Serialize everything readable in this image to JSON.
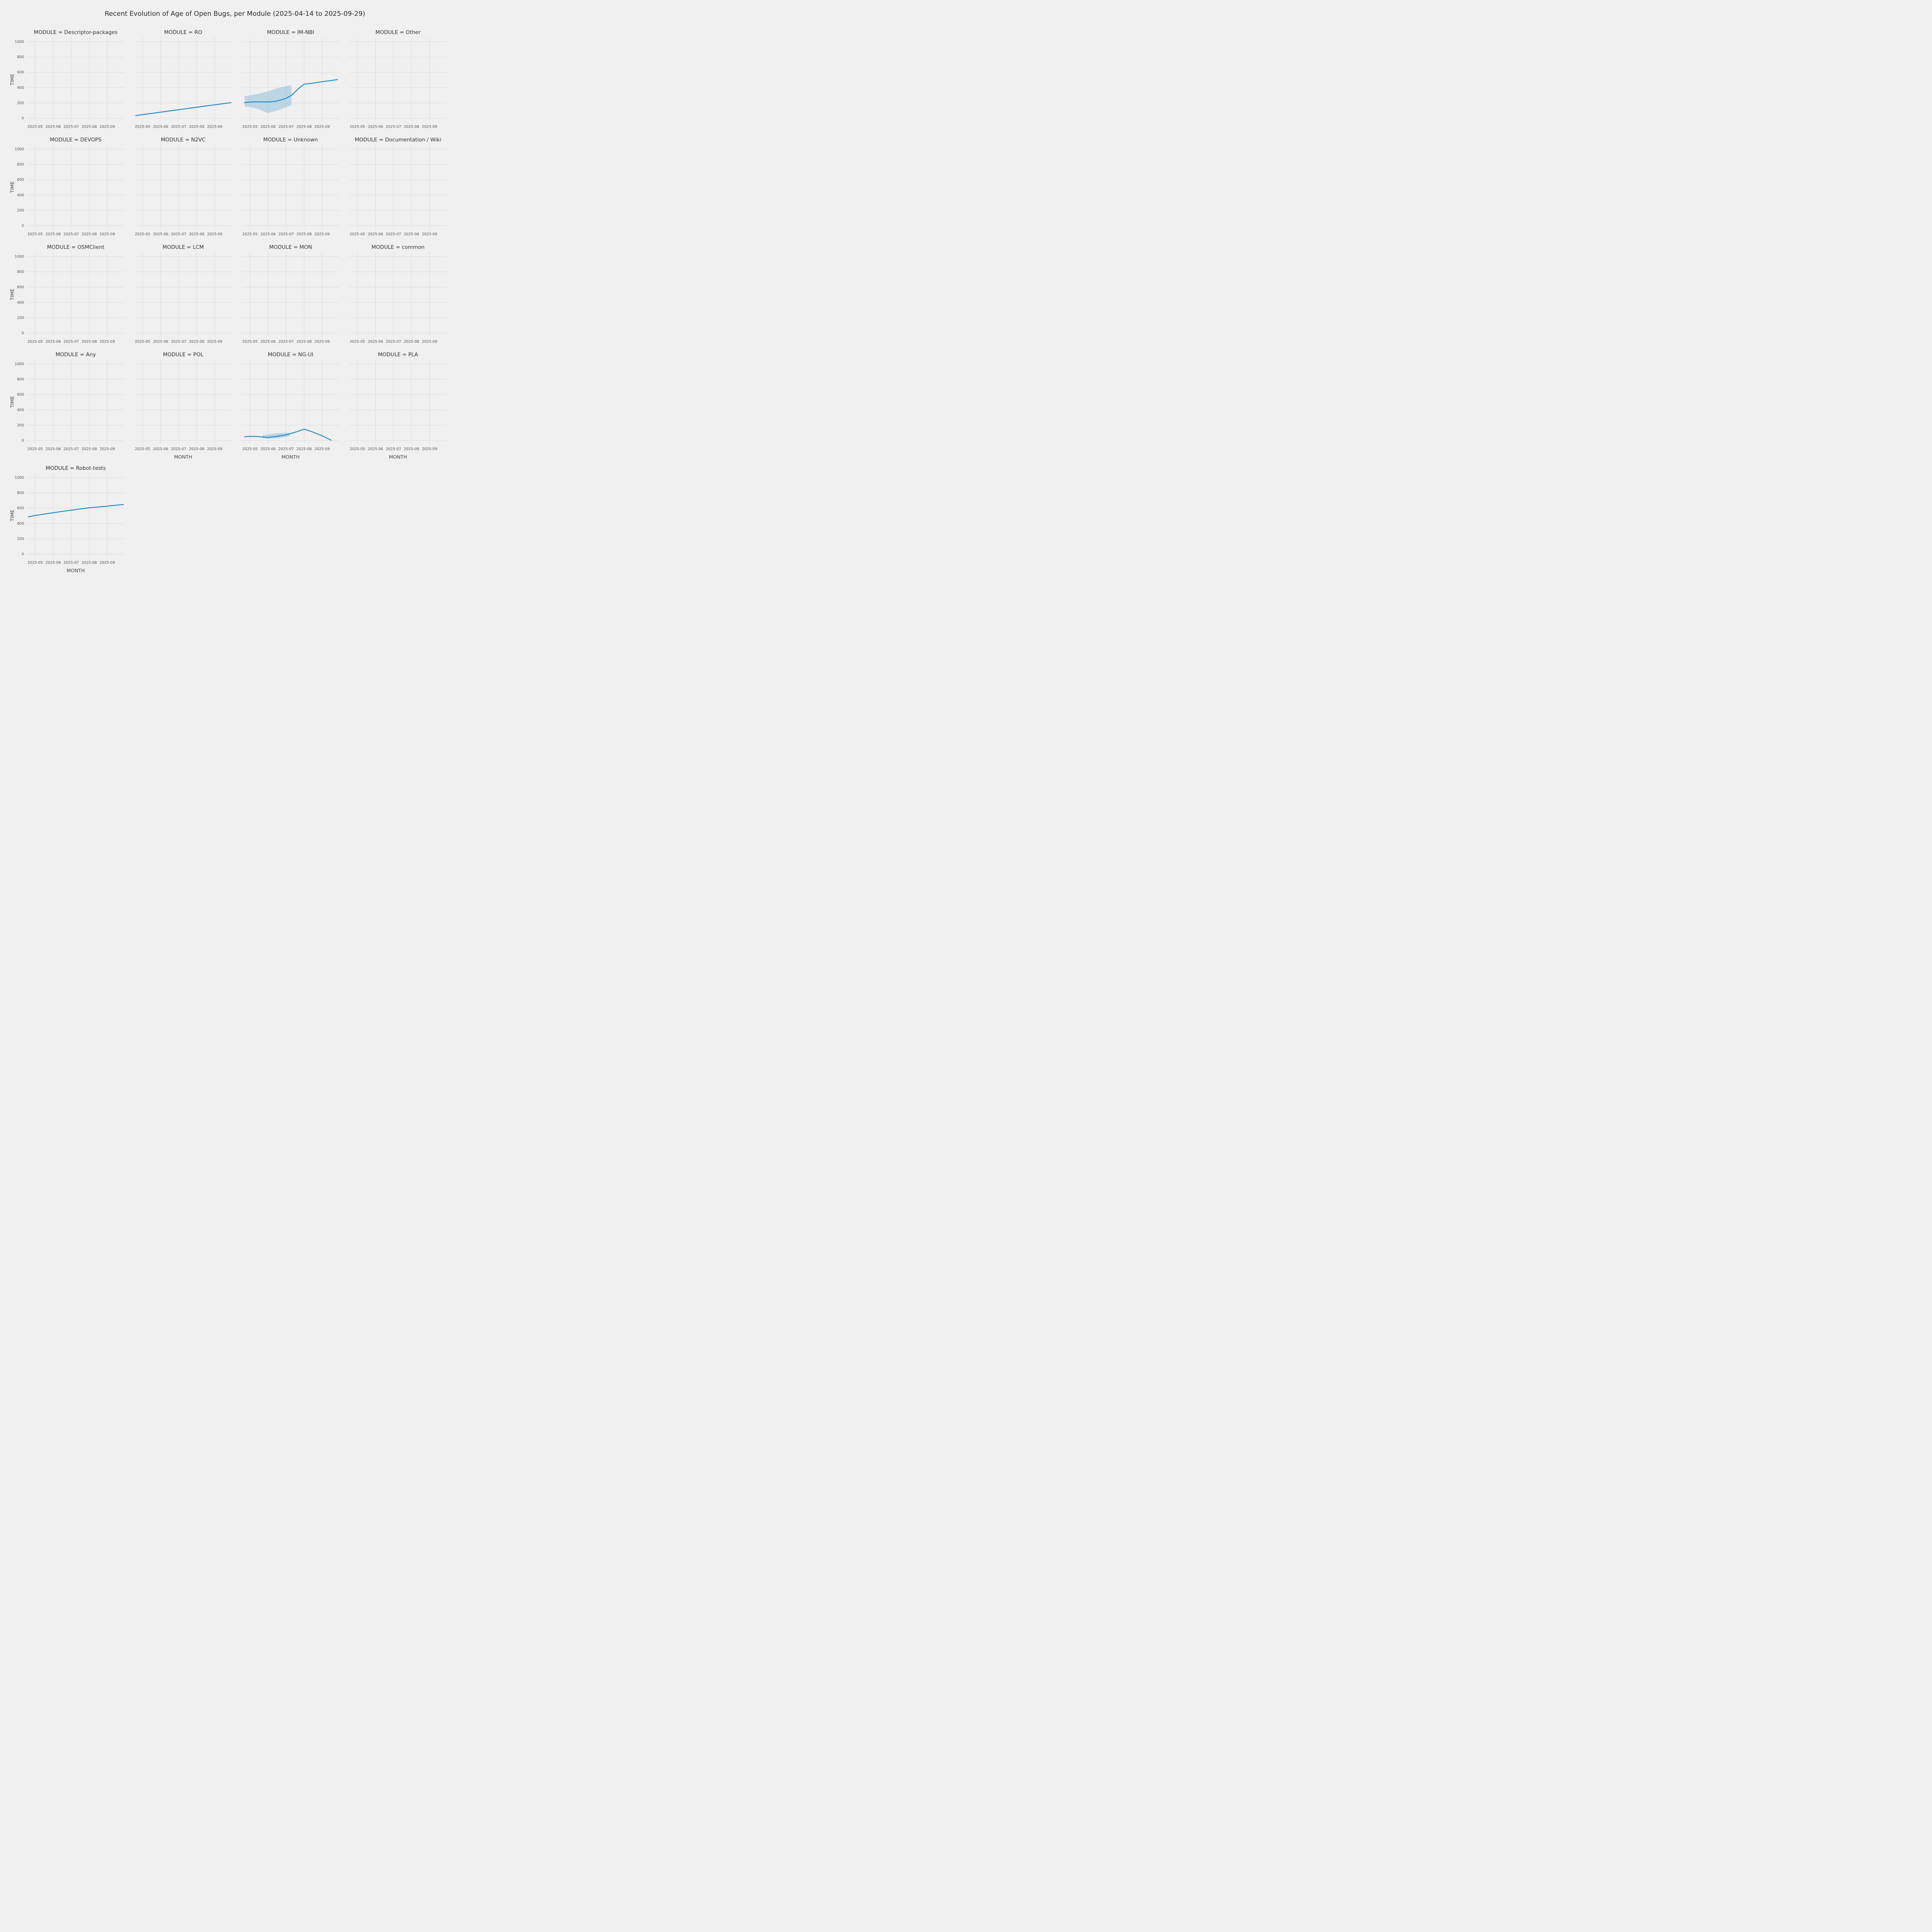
{
  "chart_data": {
    "type": "line",
    "title": "Recent Evolution of Age of Open Bugs, per Module (2025-04-14 to 2025-09-29)",
    "xlabel": "MONTH",
    "ylabel": "TIME",
    "legend_position": "none",
    "grid": true,
    "background_color": "#f0f0f0",
    "grid_color": "#dcdcdc",
    "line_color": "#2087c2",
    "band_opacity": 0.25,
    "x_domain": [
      0.55,
      5.95
    ],
    "y_domain": [
      -50,
      1060
    ],
    "x_ticks": {
      "positions": [
        1,
        2,
        3,
        4,
        5
      ],
      "labels": [
        "2025-05",
        "2025-06",
        "2025-07",
        "2025-08",
        "2025-09"
      ]
    },
    "y_ticks": [
      0,
      200,
      400,
      600,
      800,
      1000
    ],
    "x_unit_note": "x values are months, 1 = 2025-05 ... 5 = 2025-09",
    "facets": [
      {
        "label": "MODULE = Descriptor-packages",
        "module": "Descriptor-packages",
        "series": null,
        "band": null,
        "show_xlabel": false
      },
      {
        "label": "MODULE = RO",
        "module": "RO",
        "series": {
          "x": [
            0.62,
            1,
            1.5,
            2,
            2.5,
            3,
            3.5,
            4,
            4.5,
            5,
            5.5,
            5.9
          ],
          "y": [
            35,
            48,
            63,
            80,
            96,
            112,
            128,
            144,
            160,
            176,
            191,
            205
          ]
        },
        "band": null,
        "show_xlabel": false
      },
      {
        "label": "MODULE = IM-NBI",
        "module": "IM-NBI",
        "series": {
          "x": [
            0.7,
            1,
            1.5,
            2,
            2.4,
            2.8,
            3,
            3.3,
            3.7,
            4,
            4.5,
            5,
            5.5,
            5.85
          ],
          "y": [
            205,
            212,
            216,
            213,
            220,
            245,
            260,
            300,
            390,
            445,
            458,
            478,
            493,
            505
          ]
        },
        "band": {
          "x": [
            0.7,
            1,
            1.5,
            2,
            2.5,
            3,
            3.3
          ],
          "lo": [
            150,
            147,
            115,
            68,
            100,
            145,
            170
          ],
          "hi": [
            288,
            300,
            322,
            352,
            392,
            420,
            432
          ]
        },
        "show_xlabel": false
      },
      {
        "label": "MODULE = Other",
        "module": "Other",
        "series": null,
        "band": null,
        "show_xlabel": false
      },
      {
        "label": "MODULE = DEVOPS",
        "module": "DEVOPS",
        "series": null,
        "band": null,
        "show_xlabel": false
      },
      {
        "label": "MODULE = N2VC",
        "module": "N2VC",
        "series": null,
        "band": null,
        "show_xlabel": false
      },
      {
        "label": "MODULE = Unknown",
        "module": "Unknown",
        "series": null,
        "band": null,
        "show_xlabel": false
      },
      {
        "label": "MODULE = Documentation / Wiki",
        "module": "Documentation / Wiki",
        "series": null,
        "band": null,
        "show_xlabel": false
      },
      {
        "label": "MODULE = OSMClient",
        "module": "OSMClient",
        "series": null,
        "band": null,
        "show_xlabel": false
      },
      {
        "label": "MODULE = LCM",
        "module": "LCM",
        "series": null,
        "band": null,
        "show_xlabel": false
      },
      {
        "label": "MODULE = MON",
        "module": "MON",
        "series": null,
        "band": null,
        "show_xlabel": false
      },
      {
        "label": "MODULE = common",
        "module": "common",
        "series": null,
        "band": null,
        "show_xlabel": false
      },
      {
        "label": "MODULE = Any",
        "module": "Any",
        "series": null,
        "band": null,
        "show_xlabel": false
      },
      {
        "label": "MODULE = POL",
        "module": "POL",
        "series": null,
        "band": null,
        "show_xlabel": true
      },
      {
        "label": "MODULE = NG-UI",
        "module": "NG-UI",
        "series": {
          "x": [
            0.7,
            1,
            1.4,
            2,
            2.5,
            3,
            3.5,
            4,
            4.4,
            5,
            5.5
          ],
          "y": [
            48,
            55,
            52,
            40,
            55,
            75,
            108,
            148,
            118,
            62,
            5
          ]
        },
        "band": {
          "x": [
            1.7,
            2,
            2.5,
            3,
            3.2
          ],
          "lo": [
            30,
            24,
            30,
            46,
            58
          ],
          "hi": [
            72,
            80,
            96,
            102,
            100
          ]
        },
        "show_xlabel": true
      },
      {
        "label": "MODULE = PLA",
        "module": "PLA",
        "series": null,
        "band": null,
        "show_xlabel": true
      },
      {
        "label": "MODULE = Robot-tests",
        "module": "Robot-tests",
        "series": {
          "x": [
            0.62,
            1,
            1.7,
            2.5,
            3.2,
            4,
            4.8,
            5.9
          ],
          "y": [
            488,
            505,
            530,
            558,
            580,
            605,
            622,
            648
          ]
        },
        "band": null,
        "show_xlabel": true
      }
    ]
  }
}
